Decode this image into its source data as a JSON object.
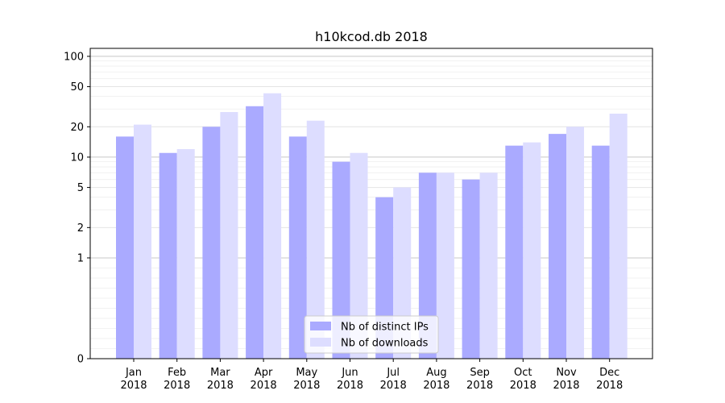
{
  "chart_data": {
    "type": "bar",
    "title": "h10kcod.db 2018",
    "xlabel": "",
    "ylabel": "",
    "yscale": "symlog",
    "ylim": [
      0,
      120
    ],
    "yticks": [
      0,
      1,
      2,
      5,
      10,
      20,
      50,
      100
    ],
    "grid": "horizontal",
    "legend_position": "lower-center",
    "categories": [
      {
        "month": "Jan",
        "year": "2018"
      },
      {
        "month": "Feb",
        "year": "2018"
      },
      {
        "month": "Mar",
        "year": "2018"
      },
      {
        "month": "Apr",
        "year": "2018"
      },
      {
        "month": "May",
        "year": "2018"
      },
      {
        "month": "Jun",
        "year": "2018"
      },
      {
        "month": "Jul",
        "year": "2018"
      },
      {
        "month": "Aug",
        "year": "2018"
      },
      {
        "month": "Sep",
        "year": "2018"
      },
      {
        "month": "Oct",
        "year": "2018"
      },
      {
        "month": "Nov",
        "year": "2018"
      },
      {
        "month": "Dec",
        "year": "2018"
      }
    ],
    "series": [
      {
        "name": "Nb of distinct IPs",
        "color": "#aaaaff",
        "values": [
          16,
          11,
          20,
          32,
          16,
          9,
          4,
          7,
          6,
          13,
          17,
          13
        ]
      },
      {
        "name": "Nb of downloads",
        "color": "#ddddff",
        "values": [
          21,
          12,
          28,
          43,
          23,
          11,
          5,
          7,
          7,
          14,
          20,
          27
        ]
      }
    ]
  }
}
